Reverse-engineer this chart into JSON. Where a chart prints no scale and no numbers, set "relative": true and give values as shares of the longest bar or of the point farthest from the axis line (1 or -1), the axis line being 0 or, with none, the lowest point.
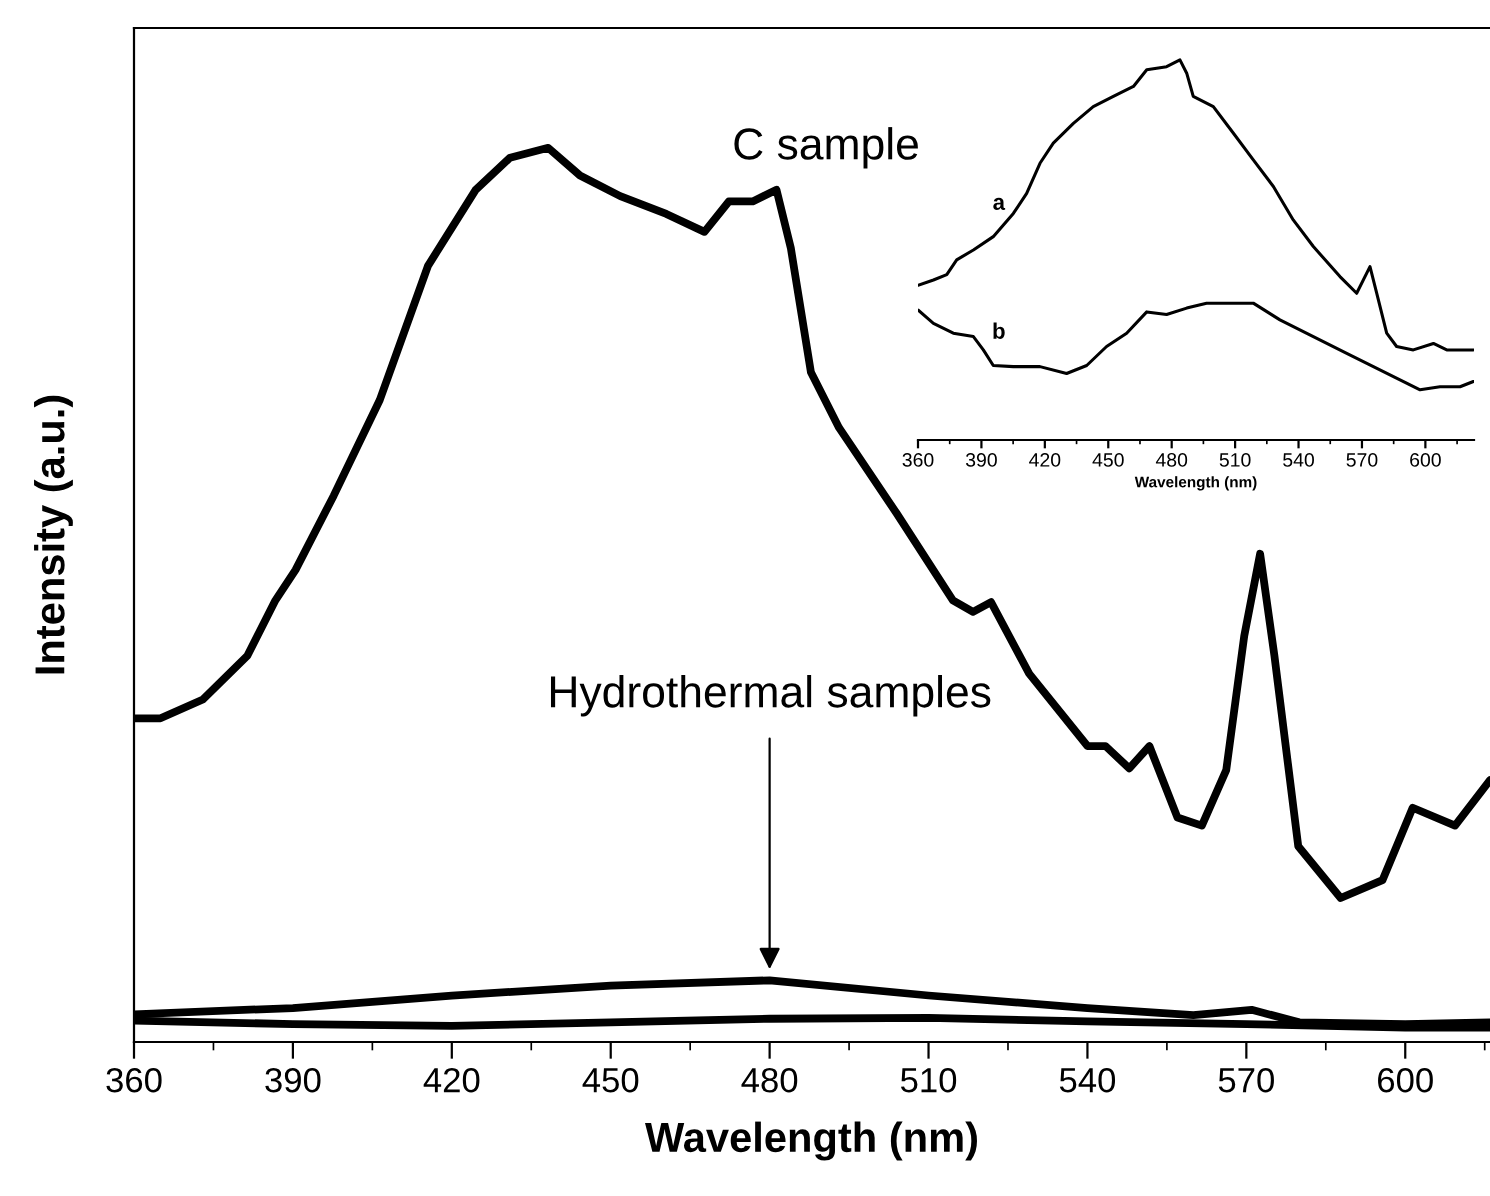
{
  "chart_data": [
    {
      "type": "line",
      "relative": true,
      "xlabel": "Wavelength (nm)",
      "ylabel": "Intensity (a.u.)",
      "xlim": [
        360,
        616
      ],
      "xticks": [
        360,
        390,
        420,
        450,
        480,
        510,
        540,
        570,
        600
      ],
      "grid": false,
      "legend": false,
      "marker": "none",
      "line_style": "solid",
      "series": [
        {
          "name": "C sample",
          "color": "#000000",
          "x": [
            360,
            365,
            373,
            381.4,
            386.7,
            390.5,
            397.7,
            406.4,
            415.5,
            424.5,
            431,
            438.2,
            444.2,
            451.8,
            460.5,
            467.7,
            472.3,
            476.8,
            481.3,
            484,
            487.8,
            493.1,
            504,
            514.6,
            518.4,
            521.8,
            529,
            540,
            543.4,
            547.9,
            551.7,
            557,
            561.6,
            566.2,
            569.6,
            572.6,
            575.3,
            579.8,
            587.8,
            595.7,
            601.4,
            609.4,
            616
          ],
          "values": [
            0.362,
            0.362,
            0.383,
            0.432,
            0.494,
            0.528,
            0.611,
            0.718,
            0.868,
            0.953,
            0.989,
            1.0,
            0.969,
            0.946,
            0.926,
            0.906,
            0.94,
            0.94,
            0.953,
            0.888,
            0.749,
            0.687,
            0.591,
            0.494,
            0.481,
            0.492,
            0.412,
            0.331,
            0.331,
            0.306,
            0.331,
            0.251,
            0.242,
            0.304,
            0.454,
            0.546,
            0.432,
            0.219,
            0.161,
            0.181,
            0.262,
            0.242,
            0.293
          ]
        },
        {
          "color": "#000000",
          "x": [
            360,
            390,
            420,
            450,
            480,
            510,
            540,
            560,
            571,
            580,
            600,
            616
          ],
          "values": [
            0.031,
            0.038,
            0.052,
            0.063,
            0.069,
            0.052,
            0.038,
            0.03,
            0.036,
            0.022,
            0.02,
            0.022
          ]
        },
        {
          "color": "#000000",
          "x": [
            360,
            390,
            420,
            450,
            480,
            510,
            540,
            570,
            600,
            616
          ],
          "values": [
            0.024,
            0.02,
            0.018,
            0.022,
            0.026,
            0.027,
            0.023,
            0.02,
            0.016,
            0.016
          ]
        }
      ],
      "annotations": [
        {
          "text": "Hydrothermal samples",
          "x": 480,
          "y": 0.069
        }
      ]
    },
    {
      "type": "line",
      "relative": true,
      "xlabel": "Wavelength (nm)",
      "xlim": [
        360,
        623
      ],
      "xticks": [
        360,
        390,
        420,
        450,
        480,
        510,
        540,
        570,
        600
      ],
      "grid": false,
      "legend": false,
      "marker": "none",
      "line_style": "solid",
      "series": [
        {
          "name": "a",
          "color": "#000000",
          "x": [
            360,
            367.3,
            373.6,
            378.3,
            386.2,
            395.6,
            405.1,
            411.4,
            417.7,
            424,
            433.5,
            442.9,
            452.4,
            461.9,
            468.2,
            477.6,
            483.9,
            487.1,
            490.2,
            499.7,
            509.2,
            518.6,
            528.1,
            537.5,
            547,
            559.6,
            567.5,
            573.8,
            577,
            581.7,
            586.4,
            594.3,
            603.8,
            610.1,
            622.7
          ],
          "values": [
            0.407,
            0.421,
            0.435,
            0.474,
            0.5,
            0.535,
            0.596,
            0.649,
            0.728,
            0.781,
            0.833,
            0.877,
            0.904,
            0.93,
            0.974,
            0.982,
            1.0,
            0.965,
            0.904,
            0.877,
            0.807,
            0.737,
            0.667,
            0.579,
            0.509,
            0.43,
            0.386,
            0.456,
            0.386,
            0.281,
            0.246,
            0.237,
            0.254,
            0.237,
            0.237
          ]
        },
        {
          "name": "b",
          "color": "#000000",
          "x": [
            360,
            367.3,
            376.7,
            386.2,
            390.9,
            395.6,
            405.1,
            417.7,
            430.3,
            439.8,
            449.2,
            458.7,
            468.2,
            477.6,
            487.1,
            496.5,
            506,
            518.6,
            531.2,
            547,
            562.8,
            575.4,
            588,
            597.5,
            606.9,
            616.4,
            622.7
          ],
          "values": [
            0.342,
            0.307,
            0.281,
            0.272,
            0.237,
            0.196,
            0.193,
            0.193,
            0.175,
            0.196,
            0.246,
            0.281,
            0.337,
            0.33,
            0.347,
            0.36,
            0.36,
            0.36,
            0.316,
            0.272,
            0.228,
            0.193,
            0.158,
            0.132,
            0.14,
            0.14,
            0.154
          ]
        }
      ]
    }
  ]
}
